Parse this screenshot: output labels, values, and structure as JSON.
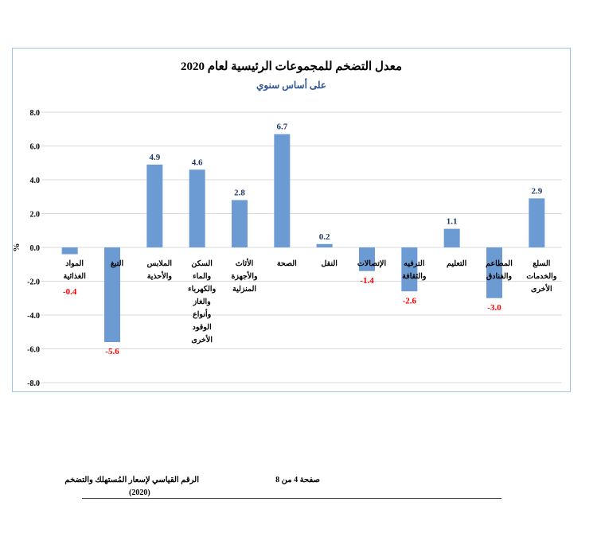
{
  "chart_data": {
    "type": "bar",
    "title": "معدل التضخم للمجموعات الرئيسية لعام 2020",
    "subtitle": "على أساس سنوي",
    "ylabel": "%",
    "xlabel": "",
    "ylim": [
      -8,
      8
    ],
    "yticks": [
      "8.0",
      "6.0",
      "4.0",
      "2.0",
      "0.0",
      "-2.0",
      "-4.0",
      "-6.0",
      "-8.0"
    ],
    "ytick_values": [
      8,
      6,
      4,
      2,
      0,
      -2,
      -4,
      -6,
      -8
    ],
    "grid": true,
    "categories": [
      [
        "المواد الغذائية"
      ],
      [
        "التبغ"
      ],
      [
        "الملابس",
        "والأحذية"
      ],
      [
        "السكن والماء",
        "والكهرباء",
        "والغاز وأنواع",
        "الوقود الأخرى"
      ],
      [
        "الأثاث",
        "والأجهزة",
        "المنزلية"
      ],
      [
        "الصحة"
      ],
      [
        "النقل"
      ],
      [
        "الإتصالات"
      ],
      [
        "الترفيه والثقافة"
      ],
      [
        "التعليم"
      ],
      [
        "المطاعم",
        "والفنادق"
      ],
      [
        "السلع",
        "والخدمات",
        "الأخرى"
      ]
    ],
    "values": [
      -0.4,
      -5.6,
      4.9,
      4.6,
      2.8,
      6.7,
      0.2,
      -1.4,
      -2.6,
      1.1,
      -3.0,
      2.9
    ],
    "data_labels": [
      "-0.4",
      "-5.6",
      "4.9",
      "4.6",
      "2.8",
      "6.7",
      "0.2",
      "-1.4",
      "-2.6",
      "1.1",
      "-3.0",
      "2.9"
    ],
    "colors": {
      "bar": "#6b9bd2",
      "positive_label": "#1f3864",
      "negative_label": "#ff0000",
      "grid": "#d9d9d9"
    }
  },
  "footer": {
    "publication": "الرقم القياسي لإسعار المُستهلك والتضخم",
    "year": "(2020)",
    "page": "صفحة 4 من 8"
  }
}
